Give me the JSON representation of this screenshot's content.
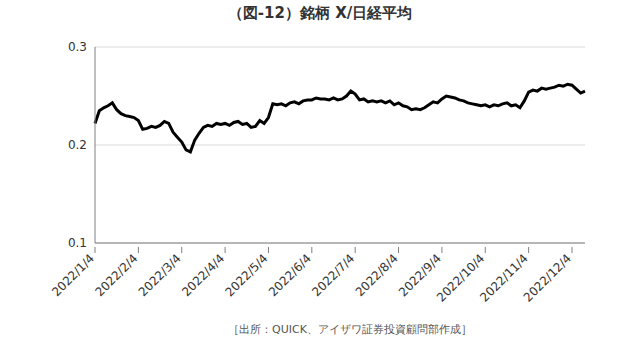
{
  "chart_data": {
    "type": "line",
    "title": "（図-12）銘柄 X/日経平均",
    "source": "［出所：QUICK、アイザワ証券投資顧問部作成］",
    "categories": [
      "2022/1/4",
      null,
      null,
      null,
      null,
      null,
      null,
      null,
      null,
      null,
      "2022/2/4",
      null,
      null,
      null,
      null,
      null,
      null,
      null,
      null,
      null,
      "2022/3/4",
      null,
      null,
      null,
      null,
      null,
      null,
      null,
      null,
      null,
      "2022/4/4",
      null,
      null,
      null,
      null,
      null,
      null,
      null,
      null,
      null,
      "2022/5/4",
      null,
      null,
      null,
      null,
      null,
      null,
      null,
      null,
      null,
      "2022/6/4",
      null,
      null,
      null,
      null,
      null,
      null,
      null,
      null,
      null,
      "2022/7/4",
      null,
      null,
      null,
      null,
      null,
      null,
      null,
      null,
      null,
      "2022/8/4",
      null,
      null,
      null,
      null,
      null,
      null,
      null,
      null,
      null,
      "2022/9/4",
      null,
      null,
      null,
      null,
      null,
      null,
      null,
      null,
      null,
      "2022/10/4",
      null,
      null,
      null,
      null,
      null,
      null,
      null,
      null,
      null,
      "2022/11/4",
      null,
      null,
      null,
      null,
      null,
      null,
      null,
      null,
      null,
      "2022/12/4",
      null,
      null,
      null
    ],
    "values": [
      0.222,
      0.235,
      0.238,
      0.24,
      0.243,
      0.236,
      0.232,
      0.23,
      0.229,
      0.228,
      0.225,
      0.216,
      0.217,
      0.219,
      0.218,
      0.22,
      0.224,
      0.222,
      0.213,
      0.208,
      0.203,
      0.195,
      0.193,
      0.205,
      0.212,
      0.218,
      0.22,
      0.219,
      0.222,
      0.221,
      0.222,
      0.22,
      0.223,
      0.224,
      0.221,
      0.222,
      0.218,
      0.219,
      0.225,
      0.222,
      0.228,
      0.242,
      0.241,
      0.242,
      0.24,
      0.243,
      0.244,
      0.242,
      0.245,
      0.246,
      0.246,
      0.248,
      0.247,
      0.247,
      0.246,
      0.248,
      0.246,
      0.247,
      0.25,
      0.255,
      0.252,
      0.246,
      0.247,
      0.244,
      0.245,
      0.244,
      0.245,
      0.243,
      0.245,
      0.241,
      0.243,
      0.24,
      0.239,
      0.236,
      0.237,
      0.236,
      0.238,
      0.241,
      0.244,
      0.243,
      0.247,
      0.25,
      0.249,
      0.248,
      0.246,
      0.245,
      0.243,
      0.242,
      0.241,
      0.24,
      0.241,
      0.239,
      0.241,
      0.24,
      0.242,
      0.243,
      0.24,
      0.241,
      0.238,
      0.245,
      0.254,
      0.256,
      0.255,
      0.258,
      0.257,
      0.258,
      0.259,
      0.261,
      0.26,
      0.262,
      0.261,
      0.257,
      0.253,
      0.255
    ],
    "color": "#000000",
    "ylim": [
      0.1,
      0.3
    ],
    "yticks": [
      0.1,
      0.2,
      0.3
    ],
    "grid": true
  }
}
